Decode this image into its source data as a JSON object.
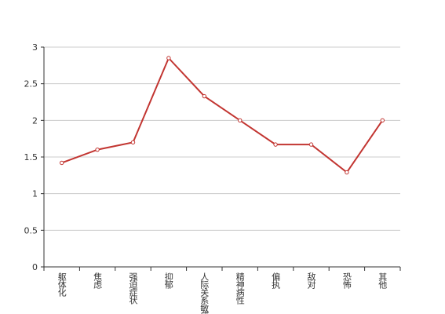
{
  "chart_data": {
    "type": "line",
    "categories": [
      "躯体化",
      "焦虑",
      "强迫症状",
      "抑郁",
      "人际关系敏感",
      "精神病性",
      "偏执",
      "敌对",
      "恐怖",
      "其他"
    ],
    "values": [
      1.42,
      1.6,
      1.7,
      2.85,
      2.33,
      2.0,
      1.67,
      1.67,
      1.29,
      2.0
    ],
    "color": "#c23531",
    "ylim": [
      0,
      3
    ],
    "yticks": [
      0,
      0.5,
      1,
      1.5,
      2,
      2.5,
      3
    ],
    "grid": true
  }
}
